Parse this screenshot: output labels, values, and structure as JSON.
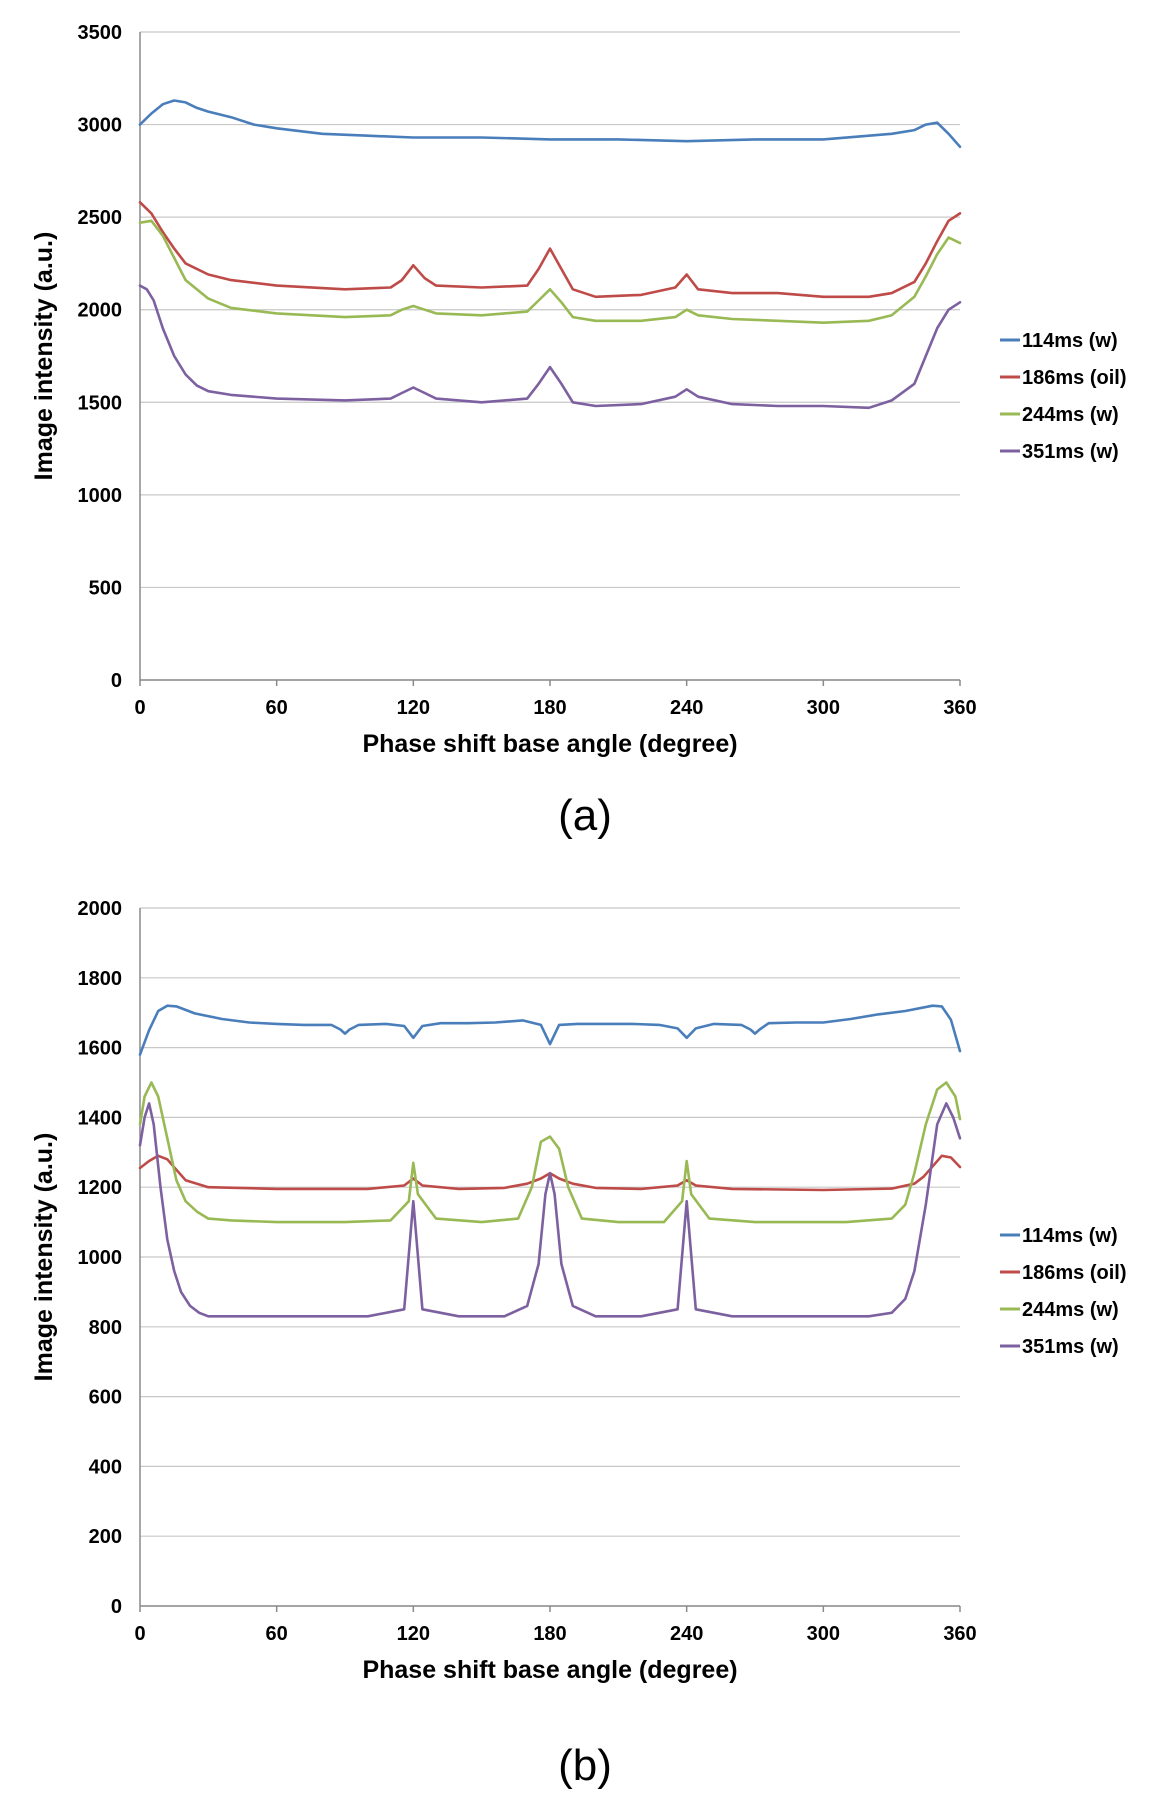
{
  "chart_data": [
    {
      "type": "line",
      "caption": "(a)",
      "xlabel": "Phase shift base angle (degree)",
      "ylabel": "Image intensity (a.u.)",
      "xlim": [
        0,
        360
      ],
      "ylim": [
        0,
        3500
      ],
      "xticks": [
        0,
        60,
        120,
        180,
        240,
        300,
        360
      ],
      "yticks": [
        0,
        500,
        1000,
        1500,
        2000,
        2500,
        3000,
        3500
      ],
      "grid": "horizontal",
      "legend_position": "right",
      "series": [
        {
          "name": "114ms (w)",
          "color": "#4a7ebb",
          "x": [
            0,
            5,
            10,
            15,
            20,
            25,
            30,
            40,
            50,
            60,
            80,
            100,
            120,
            150,
            180,
            210,
            240,
            270,
            300,
            320,
            330,
            340,
            345,
            350,
            355,
            360
          ],
          "y": [
            3000,
            3060,
            3110,
            3130,
            3120,
            3090,
            3070,
            3040,
            3000,
            2980,
            2950,
            2940,
            2930,
            2930,
            2920,
            2920,
            2910,
            2920,
            2920,
            2940,
            2950,
            2970,
            3000,
            3010,
            2950,
            2880
          ]
        },
        {
          "name": "186ms (oil)",
          "color": "#be4b48",
          "x": [
            0,
            5,
            10,
            15,
            20,
            30,
            40,
            60,
            90,
            110,
            115,
            120,
            125,
            130,
            150,
            170,
            175,
            180,
            185,
            190,
            200,
            220,
            235,
            240,
            245,
            260,
            280,
            300,
            320,
            330,
            340,
            345,
            350,
            355,
            360
          ],
          "y": [
            2580,
            2520,
            2420,
            2330,
            2250,
            2190,
            2160,
            2130,
            2110,
            2120,
            2160,
            2240,
            2170,
            2130,
            2120,
            2130,
            2220,
            2330,
            2220,
            2110,
            2070,
            2080,
            2120,
            2190,
            2110,
            2090,
            2090,
            2070,
            2070,
            2090,
            2150,
            2250,
            2370,
            2480,
            2520
          ]
        },
        {
          "name": "244ms (w)",
          "color": "#98b954",
          "x": [
            0,
            5,
            10,
            15,
            20,
            30,
            40,
            60,
            90,
            110,
            115,
            120,
            125,
            130,
            150,
            170,
            175,
            180,
            185,
            190,
            200,
            220,
            235,
            240,
            245,
            260,
            280,
            300,
            320,
            330,
            340,
            345,
            350,
            355,
            360
          ],
          "y": [
            2470,
            2480,
            2400,
            2280,
            2160,
            2060,
            2010,
            1980,
            1960,
            1970,
            2000,
            2020,
            2000,
            1980,
            1970,
            1990,
            2050,
            2110,
            2040,
            1960,
            1940,
            1940,
            1960,
            2000,
            1970,
            1950,
            1940,
            1930,
            1940,
            1970,
            2070,
            2180,
            2300,
            2390,
            2360
          ]
        },
        {
          "name": "351ms (w)",
          "color": "#7d60a0",
          "x": [
            0,
            3,
            6,
            10,
            15,
            20,
            25,
            30,
            40,
            60,
            90,
            110,
            115,
            120,
            125,
            130,
            150,
            170,
            175,
            180,
            185,
            190,
            200,
            220,
            235,
            240,
            245,
            260,
            280,
            300,
            320,
            330,
            340,
            345,
            350,
            355,
            360
          ],
          "y": [
            2130,
            2110,
            2050,
            1900,
            1750,
            1650,
            1590,
            1560,
            1540,
            1520,
            1510,
            1520,
            1550,
            1580,
            1550,
            1520,
            1500,
            1520,
            1600,
            1690,
            1600,
            1500,
            1480,
            1490,
            1530,
            1570,
            1530,
            1490,
            1480,
            1480,
            1470,
            1510,
            1600,
            1750,
            1900,
            2000,
            2040
          ]
        }
      ]
    },
    {
      "type": "line",
      "caption": "(b)",
      "xlabel": "Phase shift base angle (degree)",
      "ylabel": "Image intensity (a.u.)",
      "xlim": [
        0,
        360
      ],
      "ylim": [
        0,
        2000
      ],
      "xticks": [
        0,
        60,
        120,
        180,
        240,
        300,
        360
      ],
      "yticks": [
        0,
        200,
        400,
        600,
        800,
        1000,
        1200,
        1400,
        1600,
        1800,
        2000
      ],
      "grid": "horizontal",
      "legend_position": "right",
      "series": [
        {
          "name": "114ms (w)",
          "color": "#4a7ebb",
          "x": [
            0,
            4,
            8,
            12,
            16,
            24,
            36,
            48,
            60,
            72,
            84,
            88,
            90,
            92,
            96,
            108,
            116,
            120,
            124,
            132,
            144,
            156,
            168,
            176,
            180,
            184,
            192,
            204,
            216,
            228,
            236,
            240,
            244,
            252,
            264,
            268,
            270,
            272,
            276,
            288,
            300,
            312,
            324,
            336,
            348,
            352,
            356,
            360
          ],
          "y": [
            1580,
            1650,
            1705,
            1720,
            1718,
            1698,
            1682,
            1672,
            1668,
            1665,
            1665,
            1652,
            1640,
            1652,
            1665,
            1668,
            1662,
            1628,
            1662,
            1670,
            1670,
            1672,
            1678,
            1665,
            1610,
            1665,
            1668,
            1668,
            1668,
            1665,
            1655,
            1628,
            1655,
            1668,
            1665,
            1652,
            1640,
            1652,
            1670,
            1672,
            1672,
            1682,
            1695,
            1705,
            1720,
            1718,
            1680,
            1590
          ]
        },
        {
          "name": "186ms (oil)",
          "color": "#be4b48",
          "x": [
            0,
            4,
            8,
            12,
            16,
            20,
            30,
            60,
            100,
            116,
            120,
            124,
            140,
            160,
            170,
            176,
            180,
            184,
            190,
            200,
            220,
            236,
            240,
            244,
            260,
            300,
            330,
            340,
            344,
            348,
            352,
            356,
            360
          ],
          "y": [
            1255,
            1275,
            1290,
            1280,
            1250,
            1220,
            1200,
            1195,
            1195,
            1205,
            1225,
            1205,
            1195,
            1198,
            1210,
            1225,
            1240,
            1225,
            1210,
            1198,
            1195,
            1205,
            1220,
            1205,
            1195,
            1192,
            1196,
            1210,
            1230,
            1260,
            1290,
            1285,
            1258
          ]
        },
        {
          "name": "244ms (w)",
          "color": "#98b954",
          "x": [
            0,
            2,
            5,
            8,
            12,
            16,
            20,
            25,
            30,
            40,
            60,
            70,
            90,
            110,
            118,
            120,
            122,
            130,
            150,
            166,
            172,
            176,
            180,
            184,
            188,
            194,
            210,
            230,
            238,
            240,
            242,
            250,
            270,
            290,
            310,
            330,
            336,
            340,
            345,
            350,
            354,
            358,
            360
          ],
          "y": [
            1380,
            1460,
            1500,
            1460,
            1340,
            1220,
            1160,
            1130,
            1110,
            1105,
            1100,
            1100,
            1100,
            1105,
            1160,
            1270,
            1180,
            1110,
            1100,
            1110,
            1200,
            1330,
            1345,
            1310,
            1200,
            1110,
            1100,
            1100,
            1160,
            1275,
            1180,
            1110,
            1100,
            1100,
            1100,
            1110,
            1150,
            1240,
            1380,
            1480,
            1500,
            1460,
            1395
          ]
        },
        {
          "name": "351ms (w)",
          "color": "#7d60a0",
          "x": [
            0,
            2,
            4,
            6,
            9,
            12,
            15,
            18,
            22,
            26,
            30,
            40,
            60,
            80,
            100,
            116,
            120,
            124,
            140,
            160,
            170,
            175,
            178,
            180,
            182,
            185,
            190,
            200,
            220,
            236,
            240,
            244,
            260,
            280,
            300,
            320,
            330,
            336,
            340,
            345,
            350,
            354,
            357,
            360
          ],
          "y": [
            1320,
            1400,
            1440,
            1380,
            1200,
            1050,
            960,
            900,
            860,
            840,
            830,
            830,
            830,
            830,
            830,
            850,
            1160,
            850,
            830,
            830,
            860,
            980,
            1180,
            1240,
            1180,
            980,
            860,
            830,
            830,
            850,
            1160,
            850,
            830,
            830,
            830,
            830,
            840,
            880,
            960,
            1150,
            1380,
            1440,
            1400,
            1340
          ]
        }
      ]
    }
  ]
}
